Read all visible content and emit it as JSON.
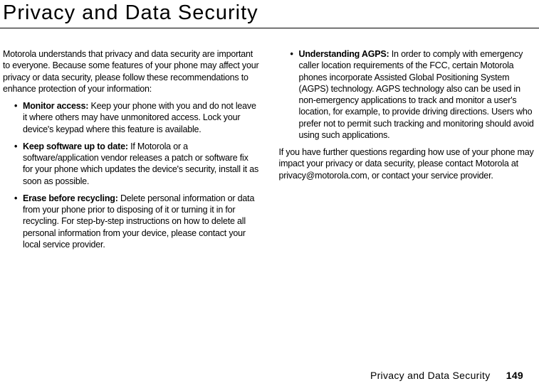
{
  "title": "Privacy and Data Security",
  "intro": "Motorola understands that privacy and data security are important to everyone. Because some features of your phone may affect your privacy or data security, please follow these recommendations to enhance protection of your information:",
  "bullets_left": [
    {
      "title": "Monitor access:",
      "body": " Keep your phone with you and do not leave it where others may have unmonitored access. Lock your device's keypad where this feature is available."
    },
    {
      "title": "Keep software up to date:",
      "body": " If Motorola or a software/application vendor releases a patch or software fix for your phone which updates the device's security, install it as soon as possible."
    },
    {
      "title": "Erase before recycling:",
      "body": " Delete personal information or data from your phone prior to disposing of it or turning it in for recycling. For step-by-step instructions on how to delete all personal information from your device, please contact your local service provider."
    }
  ],
  "bullets_right": [
    {
      "title": "Understanding AGPS:",
      "body": " In order to comply with emergency caller location requirements of the FCC, certain Motorola phones incorporate Assisted Global Positioning System (AGPS) technology. AGPS technology also can be used in non-emergency applications to track and monitor a user's location, for example, to provide driving directions. Users who prefer not to permit such tracking and monitoring should avoid using such applications."
    }
  ],
  "closing": "If you have further questions regarding how use of your phone may impact your privacy or data security, please contact Motorola at privacy@motorola.com, or contact your service provider.",
  "footer_title": "Privacy and Data Security",
  "page_number": "149",
  "colors": {
    "text": "#000000",
    "background": "#ffffff",
    "rule": "#000000"
  },
  "typography": {
    "title_fontsize": 29,
    "body_fontsize": 12.5,
    "footer_fontsize": 14
  }
}
